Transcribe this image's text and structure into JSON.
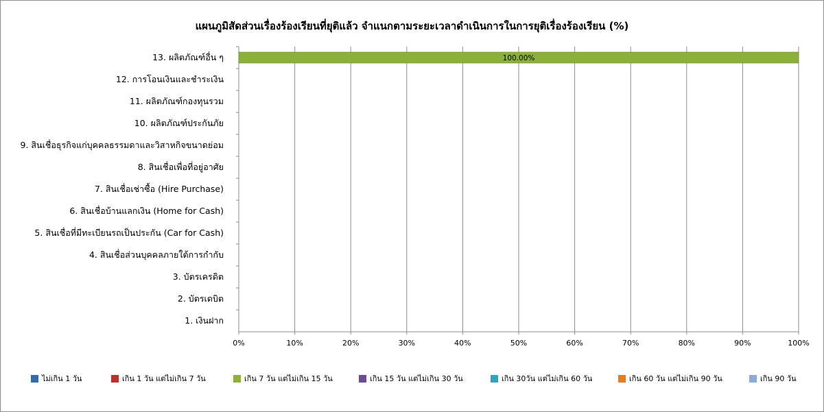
{
  "chart_data": {
    "type": "bar",
    "orientation": "horizontal",
    "stacked": true,
    "title": "แผนภูมิสัดส่วนเรื่องร้องเรียนที่ยุติแล้ว จำแนกตามระยะเวลาดำเนินการในการยุติเรื่องร้องเรียน (%)",
    "categories": [
      "13. ผลิตภัณฑ์อื่น ๆ",
      "12. การโอนเงินและชำระเงิน",
      "11. ผลิตภัณฑ์กองทุนรวม",
      "10. ผลิตภัณฑ์ประกันภัย",
      "9. สินเชื่อธุรกิจแก่บุคคลธรรมดาและวิสาหกิจขนาดย่อม",
      "8. สินเชื่อเพื่อที่อยู่อาศัย",
      "7. สินเชื่อเช่าซื้อ (Hire Purchase)",
      "6. สินเชื่อบ้านแลกเงิน (Home for Cash)",
      "5. สินเชื่อที่มีทะเบียนรถเป็นประกัน  (Car for Cash)",
      "4. สินเชื่อส่วนบุคคลภายใต้การกำกับ",
      "3. บัตรเครดิต",
      "2. บัตรเดบิต",
      "1. เงินฝาก"
    ],
    "series": [
      {
        "name": "ไม่เกิน 1 วัน",
        "color": "#2e6db4",
        "values": [
          0,
          0,
          0,
          0,
          0,
          0,
          0,
          0,
          0,
          0,
          0,
          0,
          0
        ]
      },
      {
        "name": "เกิน 1 วัน แต่ไม่เกิน 7 วัน",
        "color": "#b8332e",
        "values": [
          0,
          0,
          0,
          0,
          0,
          0,
          0,
          0,
          0,
          0,
          0,
          0,
          0
        ]
      },
      {
        "name": "เกิน 7 วัน แต่ไม่เกิน 15 วัน",
        "color": "#8db03a",
        "values": [
          100,
          0,
          0,
          0,
          0,
          0,
          0,
          0,
          0,
          0,
          0,
          0,
          0
        ]
      },
      {
        "name": "เกิน 15 วัน แต่ไม่เกิน 30 วัน",
        "color": "#6b4a9a",
        "values": [
          0,
          0,
          0,
          0,
          0,
          0,
          0,
          0,
          0,
          0,
          0,
          0,
          0
        ]
      },
      {
        "name": "เกิน 30วัน แต่ไม่เกิน 60 วัน",
        "color": "#2ea3c4",
        "values": [
          0,
          0,
          0,
          0,
          0,
          0,
          0,
          0,
          0,
          0,
          0,
          0,
          0
        ]
      },
      {
        "name": "เกิน 60 วัน แต่ไม่เกิน 90 วัน",
        "color": "#e87d1e",
        "values": [
          0,
          0,
          0,
          0,
          0,
          0,
          0,
          0,
          0,
          0,
          0,
          0,
          0
        ]
      },
      {
        "name": "เกิน 90 วัน",
        "color": "#8ea8d8",
        "values": [
          0,
          0,
          0,
          0,
          0,
          0,
          0,
          0,
          0,
          0,
          0,
          0,
          0
        ]
      }
    ],
    "data_labels": [
      {
        "category_index": 0,
        "series_index": 2,
        "text": "100.00%"
      }
    ],
    "x_ticks": [
      "0%",
      "10%",
      "20%",
      "30%",
      "40%",
      "50%",
      "60%",
      "70%",
      "80%",
      "90%",
      "100%"
    ],
    "xlim": [
      0,
      100
    ],
    "grid": true,
    "legend_position": "bottom"
  }
}
